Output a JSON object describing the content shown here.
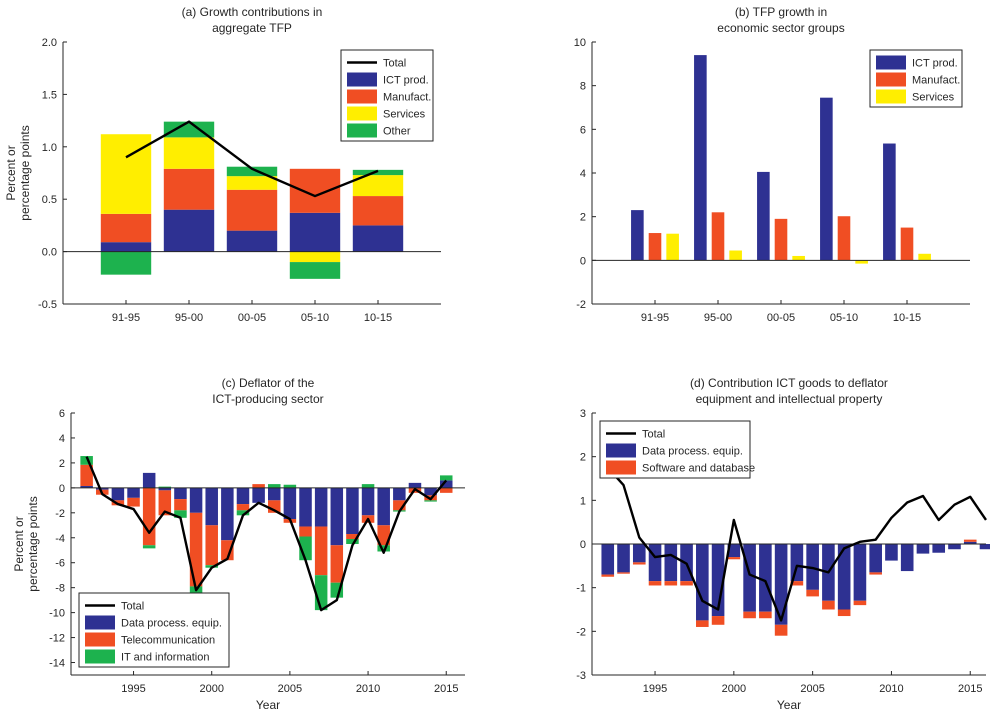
{
  "colors": {
    "ict": "#2e3192",
    "manuf": "#f04e23",
    "services": "#ffee00",
    "other": "#1db24e",
    "total": "#000000",
    "axis": "#262626"
  },
  "chart_data": [
    {
      "id": "a",
      "type": "bar",
      "stacked": true,
      "title": [
        "(a) Growth contributions in",
        "aggregate TFP"
      ],
      "xlabel": "",
      "ylabel": [
        "Percent or",
        "percentage points"
      ],
      "categories": [
        "91-95",
        "95-00",
        "00-05",
        "05-10",
        "10-15"
      ],
      "ylim": [
        -0.5,
        2.0
      ],
      "yticks": [
        -0.5,
        0.0,
        0.5,
        1.0,
        1.5,
        2.0
      ],
      "ytick_labels": [
        "-0.5",
        "0.0",
        "0.5",
        "1.0",
        "1.5",
        "2.0"
      ],
      "legend_position": "top-right",
      "legend": [
        "Total",
        "ICT prod.",
        "Manufact.",
        "Services",
        "Other"
      ],
      "series": [
        {
          "name": "ICT prod.",
          "color_key": "ict",
          "values": [
            0.09,
            0.4,
            0.2,
            0.37,
            0.25
          ]
        },
        {
          "name": "Manufact.",
          "color_key": "manuf",
          "values": [
            0.27,
            0.39,
            0.39,
            0.42,
            0.28
          ]
        },
        {
          "name": "Services",
          "color_key": "services",
          "values": [
            0.76,
            0.3,
            0.13,
            -0.1,
            0.2
          ]
        },
        {
          "name": "Other",
          "color_key": "other",
          "values": [
            -0.22,
            0.15,
            0.09,
            -0.16,
            0.05
          ]
        }
      ],
      "total": {
        "name": "Total",
        "values": [
          0.9,
          1.24,
          0.79,
          0.53,
          0.77
        ]
      }
    },
    {
      "id": "b",
      "type": "bar",
      "grouped": true,
      "title": [
        "(b) TFP growth in",
        "economic sector groups"
      ],
      "xlabel": "",
      "ylabel": [],
      "categories": [
        "91-95",
        "95-00",
        "00-05",
        "05-10",
        "10-15"
      ],
      "ylim": [
        -2,
        10
      ],
      "yticks": [
        -2,
        0,
        2,
        4,
        6,
        8,
        10
      ],
      "ytick_labels": [
        "-2",
        "0",
        "2",
        "4",
        "6",
        "8",
        "10"
      ],
      "legend_position": "top-right",
      "legend": [
        "ICT prod.",
        "Manufact.",
        "Services"
      ],
      "series": [
        {
          "name": "ICT prod.",
          "color_key": "ict",
          "values": [
            2.3,
            9.4,
            4.05,
            7.45,
            5.35
          ]
        },
        {
          "name": "Manufact.",
          "color_key": "manuf",
          "values": [
            1.25,
            2.2,
            1.9,
            2.02,
            1.5
          ]
        },
        {
          "name": "Services",
          "color_key": "services",
          "values": [
            1.22,
            0.45,
            0.2,
            -0.15,
            0.3
          ]
        }
      ]
    },
    {
      "id": "c",
      "type": "bar",
      "stacked": true,
      "title": [
        "(c) Deflator of the",
        "ICT-producing sector"
      ],
      "xlabel": "Year",
      "ylabel": [
        "Percent or",
        "percentage points"
      ],
      "x": [
        1992,
        1993,
        1994,
        1995,
        1996,
        1997,
        1998,
        1999,
        2000,
        2001,
        2002,
        2003,
        2004,
        2005,
        2006,
        2007,
        2008,
        2009,
        2010,
        2011,
        2012,
        2013,
        2014,
        2015
      ],
      "xlim": [
        1991,
        2016.2
      ],
      "xticks": [
        1995,
        2000,
        2005,
        2010,
        2015
      ],
      "ylim": [
        -15,
        6
      ],
      "yticks": [
        -14,
        -12,
        -10,
        -8,
        -6,
        -4,
        -2,
        0,
        2,
        4,
        6
      ],
      "ytick_labels": [
        "-14",
        "-12",
        "-10",
        "-8",
        "-6",
        "-4",
        "-2",
        "0",
        "2",
        "4",
        "6"
      ],
      "legend_position": "bottom-left",
      "legend": [
        "Total",
        "Data process. equip.",
        "Telecommunication",
        "IT and information"
      ],
      "series": [
        {
          "name": "Data process. equip.",
          "color_key": "ict",
          "values": [
            0.15,
            -0.15,
            -1.0,
            -0.8,
            1.2,
            -0.2,
            -0.9,
            -2.0,
            -3.0,
            -4.2,
            -1.3,
            -1.2,
            -1.0,
            -2.5,
            -3.1,
            -3.1,
            -4.6,
            -3.7,
            -2.2,
            -3.0,
            -1.0,
            0.4,
            -0.6,
            0.6
          ]
        },
        {
          "name": "Telecommunication",
          "color_key": "manuf",
          "values": [
            1.7,
            -0.4,
            -0.4,
            -0.7,
            -4.6,
            -2.0,
            -0.9,
            -5.9,
            -3.2,
            -1.6,
            -0.5,
            0.3,
            -1.0,
            -0.3,
            -0.8,
            -3.9,
            -3.0,
            -0.4,
            -0.6,
            -1.6,
            -0.8,
            -0.4,
            -0.4,
            -0.4
          ]
        },
        {
          "name": "IT and information",
          "color_key": "other",
          "values": [
            0.7,
            0.0,
            0.0,
            0.0,
            -0.25,
            0.1,
            -0.6,
            -0.5,
            -0.2,
            0.0,
            -0.4,
            0.0,
            0.3,
            0.25,
            -1.9,
            -2.8,
            -1.2,
            -0.4,
            0.3,
            -0.5,
            -0.1,
            0.0,
            -0.1,
            0.4
          ]
        }
      ],
      "total": {
        "name": "Total",
        "values": [
          2.5,
          -0.5,
          -1.3,
          -1.7,
          -3.6,
          -1.9,
          -2.4,
          -8.2,
          -6.4,
          -5.7,
          -2.2,
          -1.2,
          -1.8,
          -2.5,
          -5.8,
          -9.8,
          -9.0,
          -4.6,
          -2.5,
          -5.2,
          -1.9,
          -0.1,
          -0.9,
          0.6
        ]
      }
    },
    {
      "id": "d",
      "type": "bar",
      "stacked": true,
      "title": [
        "(d) Contribution ICT goods to deflator",
        "equipment and intellectual property"
      ],
      "xlabel": "Year",
      "ylabel": [],
      "x": [
        1992,
        1993,
        1994,
        1995,
        1996,
        1997,
        1998,
        1999,
        2000,
        2001,
        2002,
        2003,
        2004,
        2005,
        2006,
        2007,
        2008,
        2009,
        2010,
        2011,
        2012,
        2013,
        2014,
        2015,
        2016
      ],
      "xlim": [
        1991,
        2016
      ],
      "xticks": [
        1995,
        2000,
        2005,
        2010,
        2015
      ],
      "ylim": [
        -3,
        3
      ],
      "yticks": [
        -3,
        -2,
        -1,
        0,
        1,
        2,
        3
      ],
      "ytick_labels": [
        "-3",
        "-2",
        "-1",
        "0",
        "1",
        "2",
        "3"
      ],
      "legend_position": "top-left",
      "legend": [
        "Total",
        "Data process. equip.",
        "Software and database"
      ],
      "series": [
        {
          "name": "Data process. equip.",
          "color_key": "ict",
          "values": [
            -0.7,
            -0.65,
            -0.42,
            -0.85,
            -0.85,
            -0.85,
            -1.75,
            -1.65,
            -0.3,
            -1.55,
            -1.55,
            -1.85,
            -0.85,
            -1.05,
            -1.3,
            -1.5,
            -1.3,
            -0.65,
            -0.38,
            -0.62,
            -0.22,
            -0.2,
            -0.12,
            0.05,
            -0.12
          ]
        },
        {
          "name": "Software and database",
          "color_key": "manuf",
          "values": [
            -0.05,
            -0.03,
            -0.05,
            -0.1,
            -0.1,
            -0.1,
            -0.15,
            -0.2,
            -0.05,
            -0.15,
            -0.15,
            -0.25,
            -0.1,
            -0.15,
            -0.2,
            -0.15,
            -0.1,
            -0.05,
            0.0,
            0.0,
            0.0,
            0.0,
            0.0,
            0.05,
            0.0
          ]
        }
      ],
      "total": {
        "name": "Total",
        "values": [
          1.75,
          1.35,
          0.15,
          -0.3,
          -0.25,
          -0.45,
          -1.3,
          -1.5,
          0.55,
          -0.7,
          -0.85,
          -1.75,
          -0.5,
          -0.55,
          -0.65,
          -0.1,
          0.05,
          0.1,
          0.6,
          0.95,
          1.1,
          0.55,
          0.9,
          1.08,
          0.55
        ]
      }
    }
  ]
}
